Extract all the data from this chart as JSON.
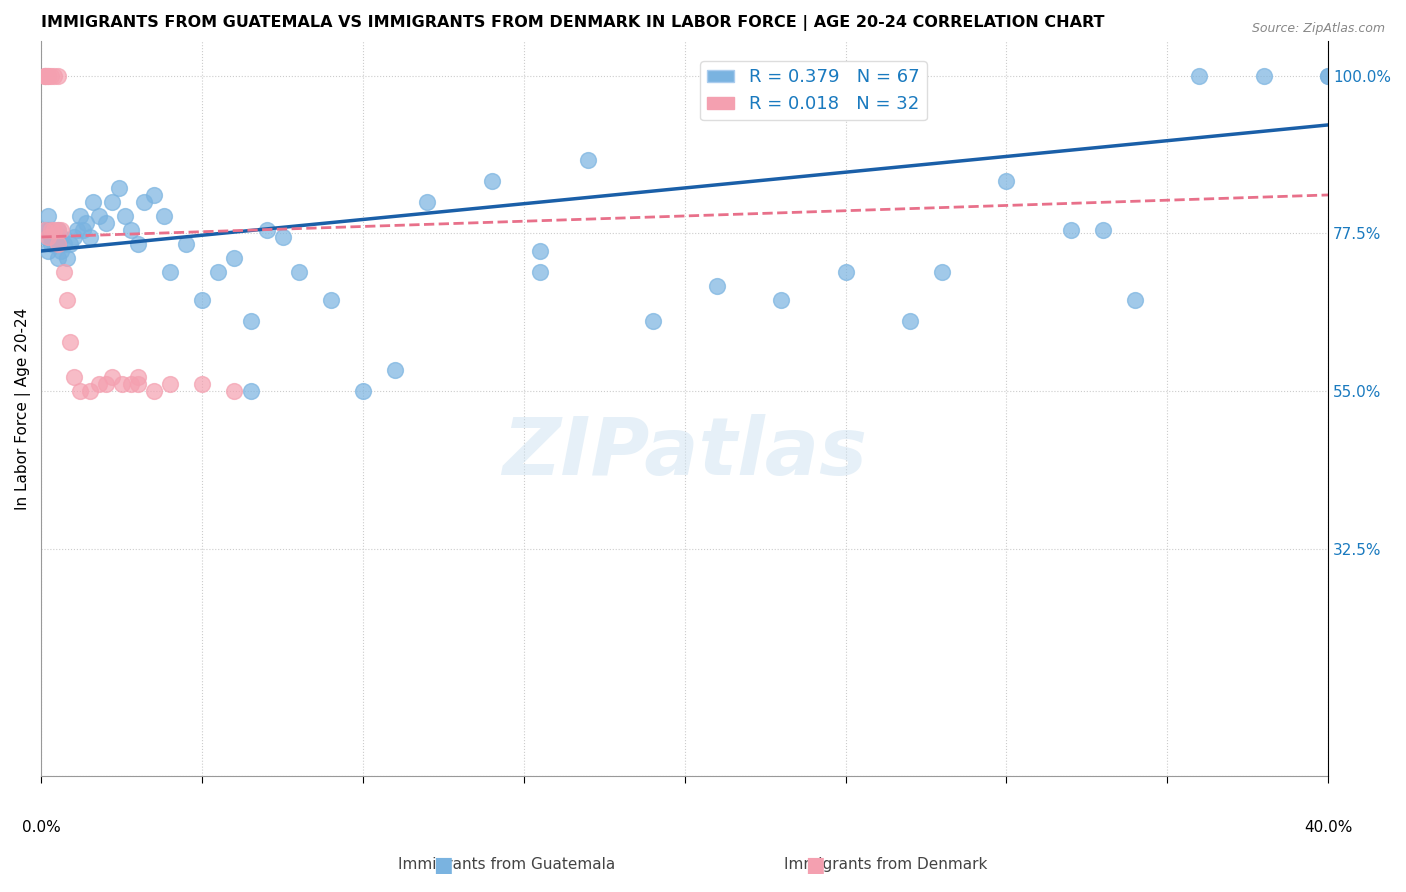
{
  "title": "IMMIGRANTS FROM GUATEMALA VS IMMIGRANTS FROM DENMARK IN LABOR FORCE | AGE 20-24 CORRELATION CHART",
  "source": "Source: ZipAtlas.com",
  "ylabel": "In Labor Force | Age 20-24",
  "yticks": [
    0.0,
    0.325,
    0.55,
    0.775,
    1.0
  ],
  "ytick_labels": [
    "",
    "32.5%",
    "55.0%",
    "77.5%",
    "100.0%"
  ],
  "xlim": [
    0.0,
    0.4
  ],
  "ylim": [
    0.0,
    1.05
  ],
  "watermark": "ZIPatlas",
  "R_guatemala": 0.379,
  "N_guatemala": 67,
  "R_denmark": 0.018,
  "N_denmark": 32,
  "color_guatemala": "#7ab3e0",
  "color_denmark": "#f4a0b0",
  "trendline_guatemala_color": "#1a5fa8",
  "trendline_denmark_color": "#e8708a",
  "guatemala_x": [
    0.001,
    0.001,
    0.002,
    0.002,
    0.002,
    0.003,
    0.003,
    0.003,
    0.004,
    0.004,
    0.005,
    0.005,
    0.005,
    0.006,
    0.006,
    0.007,
    0.008,
    0.009,
    0.01,
    0.011,
    0.012,
    0.013,
    0.014,
    0.015,
    0.016,
    0.018,
    0.02,
    0.022,
    0.024,
    0.026,
    0.028,
    0.03,
    0.032,
    0.035,
    0.038,
    0.04,
    0.045,
    0.05,
    0.055,
    0.06,
    0.065,
    0.07,
    0.075,
    0.08,
    0.09,
    0.1,
    0.11,
    0.12,
    0.14,
    0.155,
    0.17,
    0.19,
    0.21,
    0.23,
    0.25,
    0.27,
    0.3,
    0.32,
    0.34,
    0.36,
    0.38,
    0.4,
    0.4,
    0.33,
    0.28,
    0.155,
    0.065
  ],
  "guatemala_y": [
    0.77,
    0.78,
    0.75,
    0.78,
    0.8,
    0.76,
    0.77,
    0.78,
    0.76,
    0.77,
    0.74,
    0.76,
    0.78,
    0.75,
    0.77,
    0.76,
    0.74,
    0.76,
    0.77,
    0.78,
    0.8,
    0.78,
    0.79,
    0.77,
    0.82,
    0.8,
    0.79,
    0.82,
    0.84,
    0.8,
    0.78,
    0.76,
    0.82,
    0.83,
    0.8,
    0.72,
    0.76,
    0.68,
    0.72,
    0.74,
    0.65,
    0.78,
    0.77,
    0.72,
    0.68,
    0.55,
    0.58,
    0.82,
    0.85,
    0.72,
    0.88,
    0.65,
    0.7,
    0.68,
    0.72,
    0.65,
    0.85,
    0.78,
    0.68,
    1.0,
    1.0,
    1.0,
    1.0,
    0.78,
    0.72,
    0.75,
    0.55
  ],
  "denmark_x": [
    0.001,
    0.001,
    0.001,
    0.001,
    0.002,
    0.002,
    0.002,
    0.003,
    0.003,
    0.004,
    0.004,
    0.005,
    0.005,
    0.005,
    0.006,
    0.007,
    0.008,
    0.009,
    0.01,
    0.012,
    0.015,
    0.018,
    0.02,
    0.022,
    0.025,
    0.028,
    0.03,
    0.03,
    0.035,
    0.04,
    0.05,
    0.06
  ],
  "denmark_y": [
    1.0,
    1.0,
    1.0,
    0.78,
    1.0,
    1.0,
    0.77,
    1.0,
    0.78,
    1.0,
    0.78,
    1.0,
    0.78,
    0.76,
    0.78,
    0.72,
    0.68,
    0.62,
    0.57,
    0.55,
    0.55,
    0.56,
    0.56,
    0.57,
    0.56,
    0.56,
    0.57,
    0.56,
    0.55,
    0.56,
    0.56,
    0.55
  ],
  "denmark_trendline_x0": 0.0,
  "denmark_trendline_y0": 0.77,
  "denmark_trendline_x1": 0.4,
  "denmark_trendline_y1": 0.83,
  "guatemala_trendline_x0": 0.0,
  "guatemala_trendline_y0": 0.75,
  "guatemala_trendline_x1": 0.4,
  "guatemala_trendline_y1": 0.93
}
